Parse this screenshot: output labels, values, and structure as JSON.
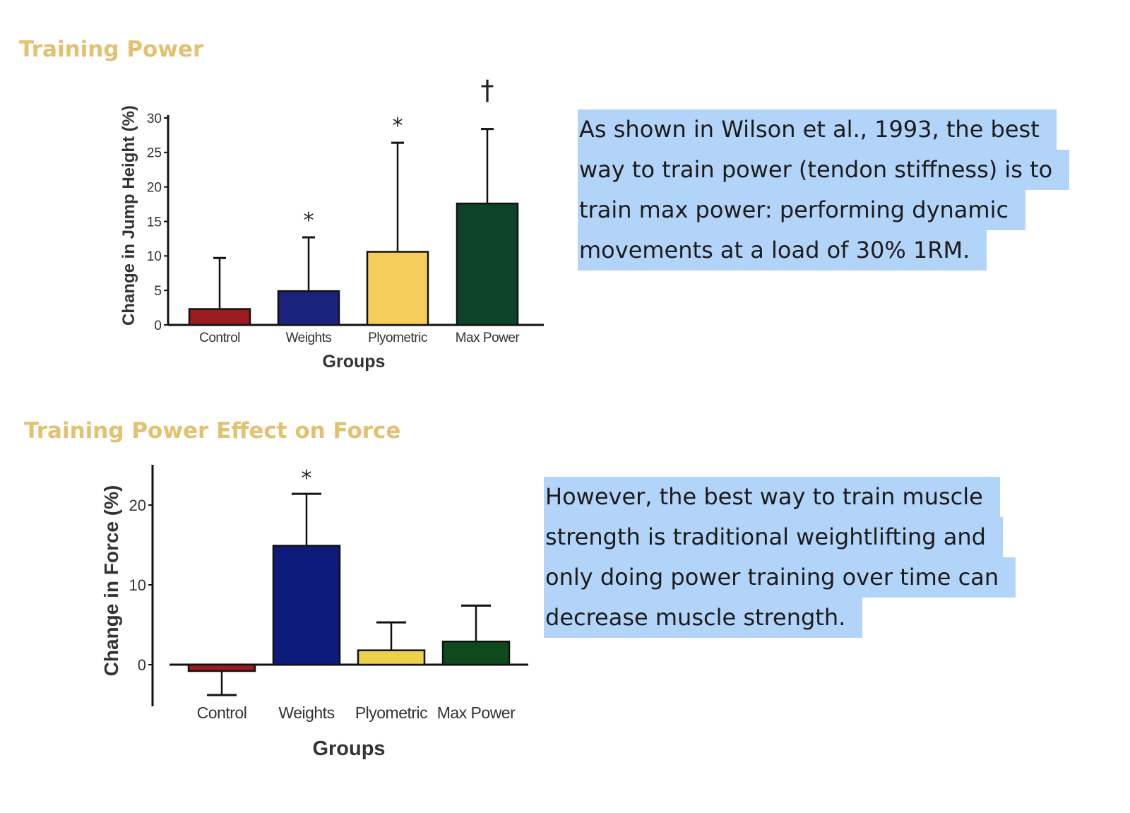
{
  "sections": [
    {
      "title": "Training Power"
    },
    {
      "title": "Training Power Effect on Force"
    }
  ],
  "notes": [
    {
      "lines": [
        "As shown in Wilson et al., 1993, the best",
        "way to train power (tendon stiffness) is to",
        "train max power: performing dynamic",
        "movements at a load of 30% 1RM."
      ]
    },
    {
      "lines": [
        "However, the best way to train muscle",
        "strength is traditional weightlifting and",
        "only doing power training over time can",
        "decrease muscle strength."
      ]
    }
  ],
  "highlight_color": "#b3d4f9",
  "chart_data": [
    {
      "type": "bar",
      "categories": [
        "Control",
        "Weights",
        "Plyometric",
        "Max Power"
      ],
      "values": [
        2.3,
        4.9,
        10.6,
        17.6
      ],
      "error_upper": [
        9.7,
        12.7,
        26.4,
        28.4
      ],
      "significance": [
        "",
        "*",
        "*",
        "†"
      ],
      "colors": [
        "#9b1b1e",
        "#1a237e",
        "#f5cd5a",
        "#0d4429"
      ],
      "xlabel": "Groups",
      "ylabel": "Change in Jump Height (%)",
      "ylim": [
        0,
        30
      ],
      "yticks": [
        0,
        5,
        10,
        15,
        20,
        25,
        30
      ],
      "grid": false
    },
    {
      "type": "bar",
      "categories": [
        "Control",
        "Weights",
        "Plyometric",
        "Max Power"
      ],
      "values": [
        -0.8,
        14.9,
        1.8,
        2.9
      ],
      "error_upper": [
        -3.8,
        21.4,
        5.3,
        7.4
      ],
      "significance": [
        "",
        "*",
        "",
        ""
      ],
      "colors": [
        "#9b1b1e",
        "#0d1c7c",
        "#ecd14a",
        "#0f4a1c"
      ],
      "xlabel": "Groups",
      "ylabel": "Change in Force (%)",
      "ylim": [
        -5,
        25
      ],
      "yticks": [
        0,
        10,
        20
      ],
      "grid": false
    }
  ]
}
